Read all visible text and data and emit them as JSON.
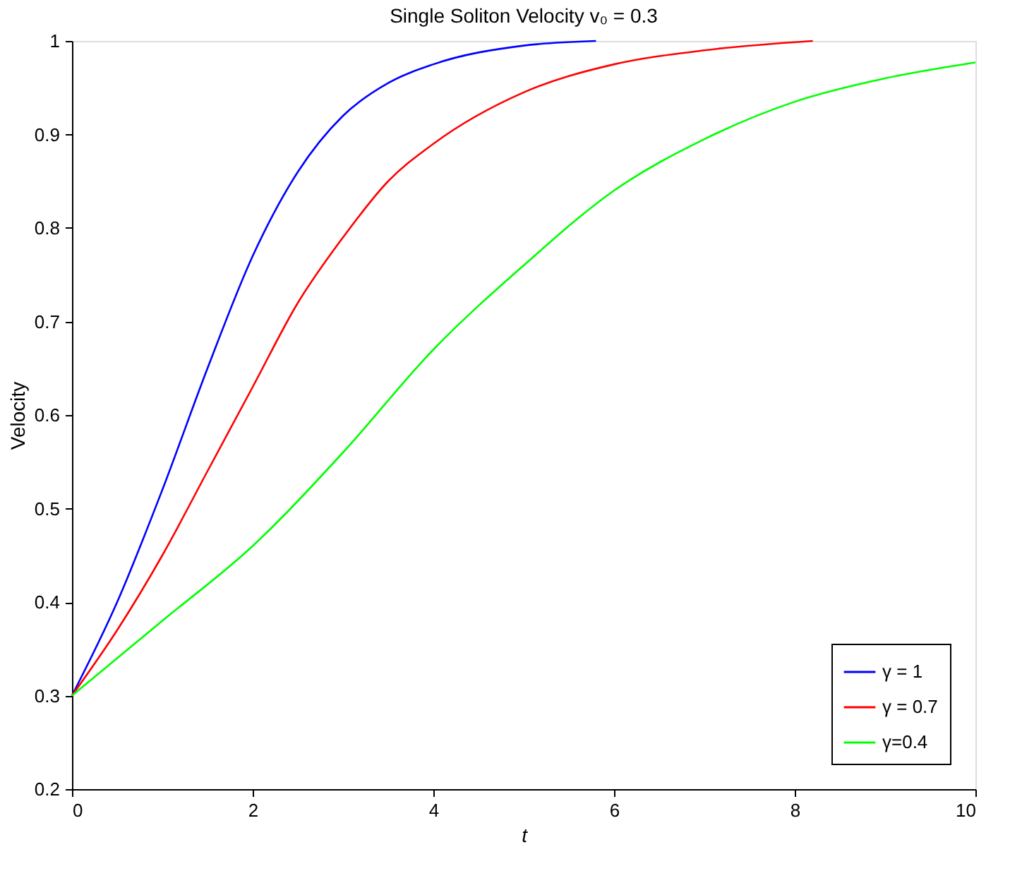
{
  "chart_data": {
    "type": "line",
    "title": "Single Soliton Velocity v₀ = 0.3",
    "xlabel": "t",
    "ylabel": "Velocity",
    "xlim": [
      0,
      10
    ],
    "xticks": [
      0,
      2,
      4,
      6,
      8,
      10
    ],
    "ylim": [
      0.2,
      1
    ],
    "yticks": [
      0.2,
      0.3,
      0.4,
      0.5,
      0.6,
      0.7,
      0.8,
      0.9,
      1
    ],
    "grid": false,
    "legend": "bottom right",
    "marker": "none",
    "line_style": "solid",
    "series": [
      {
        "name": "γ = 1",
        "color": "#0000ff",
        "x": [
          0,
          0.5,
          1,
          1.5,
          2,
          2.5,
          3,
          3.5,
          4,
          5,
          5.8
        ],
        "values": [
          0.3,
          0.4,
          0.52,
          0.65,
          0.77,
          0.86,
          0.92,
          0.955,
          0.975,
          0.995,
          1.0
        ]
      },
      {
        "name": "γ = 0.7",
        "color": "#ff0000",
        "x": [
          0,
          0.5,
          1,
          1.5,
          2,
          2.5,
          3,
          3.5,
          4,
          5,
          6,
          7,
          8.2
        ],
        "values": [
          0.3,
          0.37,
          0.45,
          0.54,
          0.63,
          0.72,
          0.79,
          0.85,
          0.89,
          0.945,
          0.975,
          0.99,
          1.0
        ]
      },
      {
        "name": "γ=0.4",
        "color": "#00ff00",
        "x": [
          0,
          0.5,
          1,
          2,
          3,
          4,
          5,
          6,
          7,
          8,
          9,
          10
        ],
        "values": [
          0.3,
          0.34,
          0.38,
          0.46,
          0.56,
          0.67,
          0.76,
          0.84,
          0.895,
          0.935,
          0.96,
          0.977
        ]
      }
    ]
  }
}
